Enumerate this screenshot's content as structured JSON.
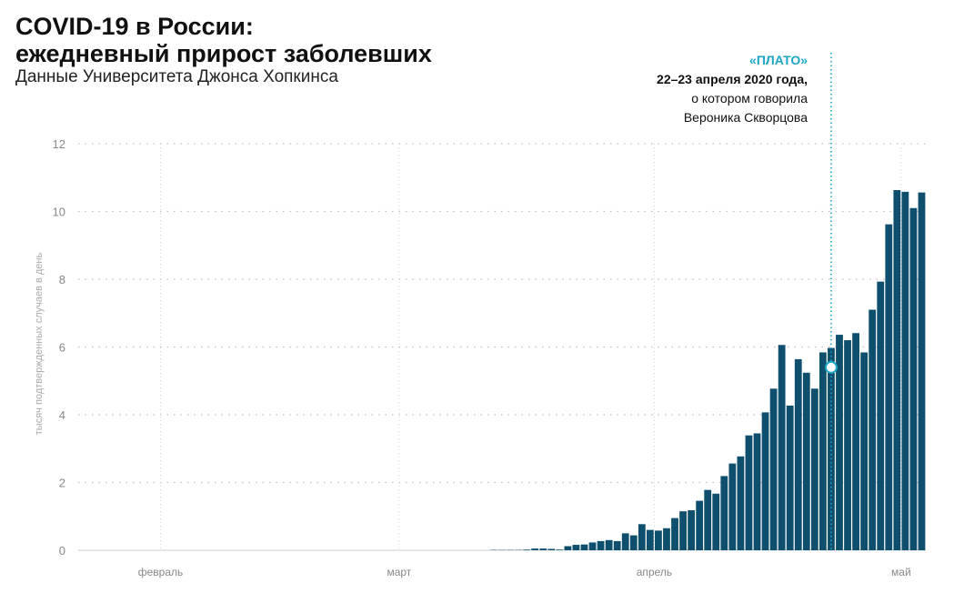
{
  "header": {
    "title_line1": "COVID-19 в России:",
    "title_line2": "ежедневный прирост заболевших",
    "subtitle": "Данные Университета Джонса Хопкинса"
  },
  "annotation": {
    "title": "«ПЛАТО»",
    "date": "22–23 апреля 2020 года,",
    "line1": "о котором говорила",
    "line2": "Вероника Скворцова"
  },
  "colors": {
    "bar": "#0d4f6c",
    "annotation": "#1aa6c7",
    "grid": "#bfbfbf",
    "axis_text": "#888888"
  },
  "chart_data": {
    "type": "bar",
    "ylabel": "тысяч подтвержденных случаев в день",
    "ylim": [
      0,
      12
    ],
    "yticks": [
      0,
      2,
      4,
      6,
      8,
      10,
      12
    ],
    "grid": true,
    "month_labels": [
      "февраль",
      "март",
      "апрель",
      "май"
    ],
    "month_offsets": [
      10,
      39,
      70,
      100
    ],
    "x_start": "2020-01-22",
    "values": [
      0,
      0,
      0,
      0,
      0,
      0,
      0,
      0,
      0,
      0,
      0,
      0,
      0,
      0,
      0,
      0,
      0,
      0,
      0,
      0,
      0,
      0,
      0,
      0,
      0,
      0,
      0,
      0,
      0,
      0,
      0,
      0,
      0,
      0,
      0,
      0,
      0,
      0,
      0,
      0,
      0,
      0,
      0,
      0,
      0,
      0,
      0,
      0,
      0,
      0,
      0.01,
      0.01,
      0.01,
      0.01,
      0.02,
      0.05,
      0.05,
      0.04,
      0.02,
      0.12,
      0.16,
      0.17,
      0.23,
      0.27,
      0.3,
      0.27,
      0.5,
      0.44,
      0.77,
      0.6,
      0.58,
      0.65,
      0.95,
      1.15,
      1.18,
      1.46,
      1.78,
      1.67,
      2.19,
      2.56,
      2.77,
      3.39,
      3.45,
      4.07,
      4.77,
      6.06,
      4.27,
      5.64,
      5.24,
      4.77,
      5.84,
      5.97,
      6.36,
      6.2,
      6.41,
      5.84,
      7.1,
      7.93,
      9.62,
      10.63,
      10.58,
      10.1,
      10.56
    ],
    "annotation_day": 91.5,
    "annotation_marker_value": 5.4
  }
}
